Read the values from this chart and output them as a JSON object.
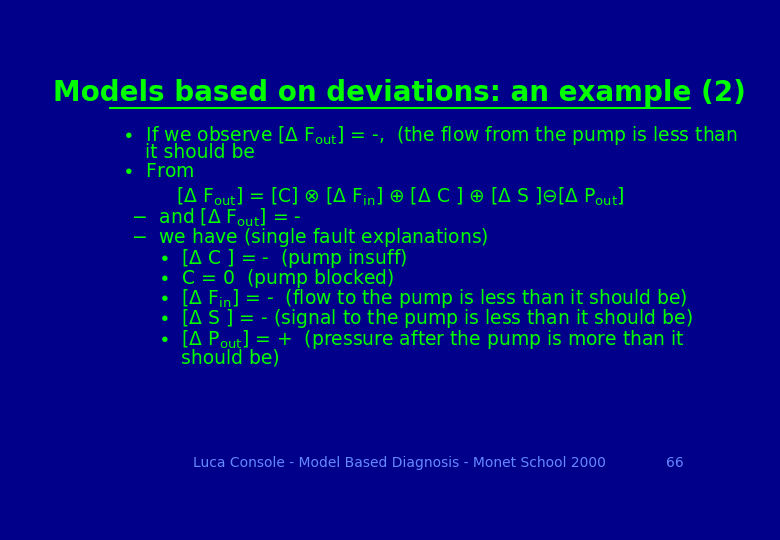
{
  "title": "Models based on deviations: an example (2)",
  "bg_color": "#00008B",
  "title_color": "#00FF00",
  "text_color": "#00FF00",
  "footer_text": "Luca Console - Model Based Diagnosis - Monet School 2000",
  "page_num": "66",
  "title_fontsize": 20,
  "body_fontsize": 13.5,
  "footer_fontsize": 10,
  "footer_color": "#6688FF"
}
